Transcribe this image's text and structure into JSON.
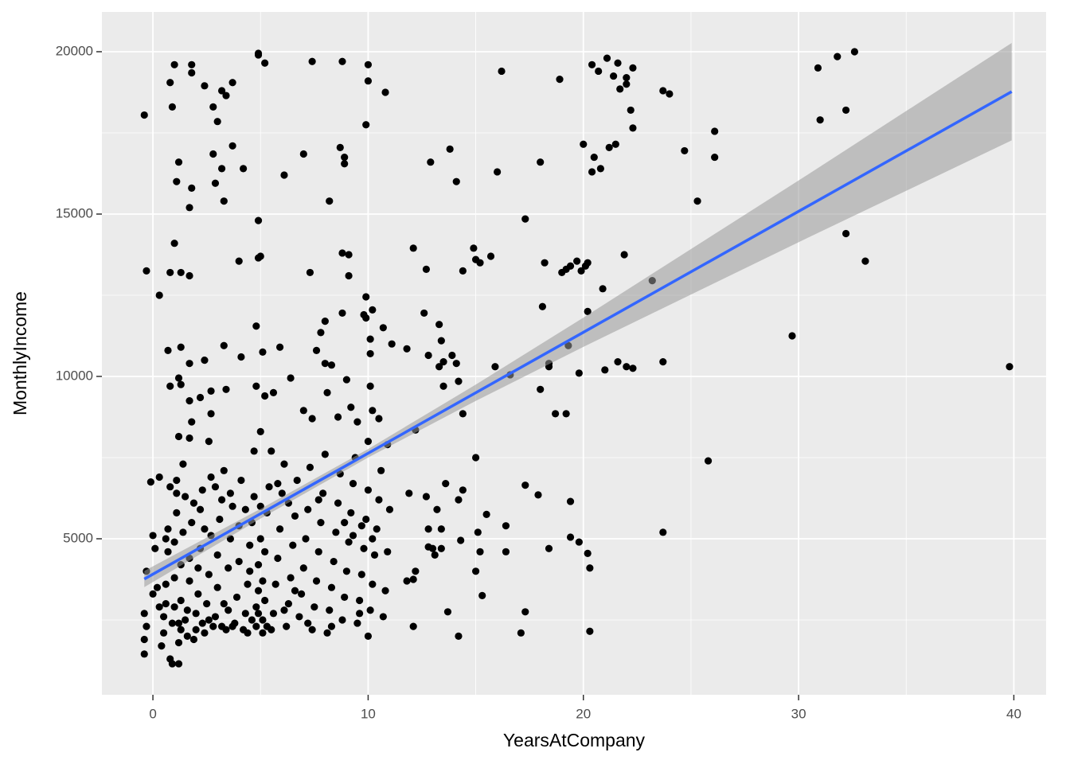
{
  "chart_data": {
    "type": "scatter",
    "x_label": "YearsAtCompany",
    "y_label": "MonthlyIncome",
    "xlim": [
      -2.37,
      41.5
    ],
    "ylim": [
      196,
      21225
    ],
    "xticks": [
      0,
      10,
      20,
      30,
      40
    ],
    "yticks": [
      5000,
      10000,
      15000,
      20000
    ],
    "grid": true,
    "color": "#000000",
    "x": [
      -0.4,
      0.8,
      1,
      0.9,
      1.8,
      1.8,
      2.4,
      2.8,
      3,
      3.2,
      3.4,
      3.7,
      4.9,
      4.9,
      5.2,
      7.4,
      8.8,
      10,
      10,
      10.8,
      9.9,
      1.2,
      1.1,
      1.8,
      1.7,
      2.8,
      2.9,
      3.2,
      3.3,
      3.7,
      4.2,
      6.1,
      7,
      8.7,
      8.9,
      8.9,
      8.2,
      4.9,
      1,
      -0.3,
      0.3,
      0.8,
      1.3,
      1.7,
      4,
      5,
      4.9,
      7.3,
      8.8,
      9.1,
      9.1,
      9.9,
      4.8,
      8.8,
      8,
      7.8,
      9.8,
      10.2,
      9.9,
      10.7,
      10.1,
      11.1,
      10.1,
      3.3,
      4.1,
      5.1,
      5.9,
      7.6,
      8,
      8.3,
      2.4,
      1.7,
      1.3,
      0.7,
      1.2,
      1.3,
      0.8,
      1.7,
      2.2,
      2.7,
      3.4,
      2.7,
      2.6,
      1.2,
      1.7,
      1.8,
      4.8,
      5.2,
      5.6,
      6.4,
      7,
      7.4,
      8.1,
      8.6,
      9,
      9.2,
      9.5,
      10.1,
      10.2,
      10.5,
      10,
      12.7,
      12.1,
      13.8,
      12.9,
      14.1,
      14.4,
      14.9,
      15,
      15.2,
      15.7,
      16.2,
      16,
      17.3,
      18,
      18.2,
      18.1,
      18.9,
      19.2,
      19,
      19.4,
      19.7,
      19.9,
      20.1,
      20.2,
      20.4,
      20.7,
      21.1,
      21.6,
      21.4,
      22,
      22,
      22.3,
      21.7,
      22.2,
      22.3,
      21.2,
      21.5,
      20.5,
      20.4,
      20.8,
      20,
      23.7,
      24,
      24.7,
      25.3,
      26.1,
      26.1,
      21.9,
      20.9,
      20.2,
      23.2,
      19.3,
      21,
      21.6,
      22,
      22.3,
      23.7,
      19.8,
      18.4,
      18.4,
      16.6,
      15.9,
      14.2,
      13.5,
      14.4,
      12.2,
      18,
      18.7,
      19.2,
      12.6,
      13.3,
      13.4,
      12.8,
      13.5,
      13.9,
      14.1,
      11.8,
      13.3,
      29.7,
      25.8,
      23.7,
      30.9,
      31,
      31.8,
      32.6,
      32.2,
      32.2,
      33.1,
      39.8,
      15,
      17.3,
      17.9,
      14.4,
      14.2,
      13.6,
      13.2,
      12.7,
      11.9,
      15.1,
      15.2,
      15,
      13.4,
      14.3,
      16.4,
      16.4,
      17.3,
      17.1,
      15.3,
      14.2,
      13.7,
      12.1,
      12.2,
      11.8,
      12.1,
      12.8,
      13.1,
      13,
      18.4,
      19.4,
      19.4,
      19.8,
      20.2,
      20.3,
      20.3,
      13.4,
      15.5,
      12.8,
      -0.4,
      -0.4,
      -0.3,
      -0.4,
      -0.3,
      0,
      0,
      0.1,
      0.2,
      0.3,
      -0.1,
      0.4,
      0.5,
      0.5,
      0.6,
      0.7,
      0.7,
      0.8,
      0.8,
      0.9,
      0.9,
      1,
      1,
      1,
      1.1,
      1.1,
      1.2,
      1.2,
      1.3,
      1.3,
      1.3,
      1.4,
      1.4,
      1.5,
      1.5,
      1.6,
      1.7,
      1.7,
      1.8,
      1.9,
      2,
      2,
      2.1,
      2.2,
      2.2,
      2.3,
      2.4,
      2.5,
      2.6,
      2.7,
      2.7,
      2.8,
      2.9,
      3,
      3,
      3.1,
      3.2,
      3.3,
      3.4,
      3.5,
      3.5,
      3.6,
      3.7,
      3.8,
      3.9,
      4,
      4,
      4.1,
      4.2,
      4.3,
      4.4,
      4.5,
      4.6,
      4.7,
      4.7,
      4.8,
      4.8,
      4.9,
      4.9,
      5,
      5,
      5,
      5.1,
      5.1,
      5.2,
      5.2,
      5.3,
      5.4,
      5.5,
      5.6,
      5.7,
      5.8,
      5.9,
      6,
      6.1,
      6.2,
      6.3,
      6.4,
      6.5,
      6.6,
      6.7,
      6.8,
      6.9,
      7,
      7.1,
      7.2,
      7.3,
      7.4,
      7.5,
      7.6,
      7.7,
      7.8,
      7.9,
      8,
      8.1,
      8.2,
      8.3,
      8.4,
      8.5,
      8.6,
      8.7,
      8.8,
      8.9,
      9,
      9.1,
      9.2,
      9.3,
      9.4,
      9.5,
      9.6,
      9.7,
      9.8,
      9.9,
      10,
      10,
      10.1,
      10.2,
      10.3,
      10.4,
      10.5,
      10.6,
      10.7,
      10.8,
      10.9,
      11,
      10.9,
      0.3,
      0.6,
      1.9,
      2.6,
      3.2,
      4.4,
      5.3,
      6.1,
      7.2,
      8.3,
      9.6,
      1.2,
      1.6,
      2.3,
      3.7,
      4.6,
      5.5,
      4.9,
      5.1,
      4.5,
      3.3,
      2.1,
      6.6,
      9.3,
      9.7,
      10.2,
      8.9,
      7.7,
      6.3,
      5.8,
      4.3,
      3.6,
      2.9,
      1.1,
      0.6,
      2.4
    ],
    "values": [
      18050,
      19050,
      19600,
      18300,
      19600,
      19350,
      18950,
      18300,
      17850,
      18800,
      18650,
      19050,
      19900,
      19950,
      19650,
      19700,
      19700,
      19600,
      19100,
      18750,
      17750,
      16600,
      16000,
      15800,
      15200,
      16850,
      15950,
      16400,
      15400,
      17100,
      16400,
      16200,
      16850,
      17050,
      16750,
      16550,
      15400,
      14800,
      14100,
      13250,
      12500,
      13200,
      13200,
      13100,
      13550,
      13700,
      13650,
      13200,
      13800,
      13750,
      13100,
      12450,
      11550,
      11950,
      11700,
      11350,
      11900,
      12050,
      11800,
      11500,
      11150,
      11000,
      10700,
      10950,
      10600,
      10750,
      10900,
      10800,
      10400,
      10350,
      10500,
      10400,
      10900,
      10800,
      9950,
      9750,
      9700,
      9250,
      9350,
      9550,
      9600,
      8850,
      8000,
      8150,
      8100,
      8600,
      9700,
      9400,
      9500,
      9950,
      8950,
      8700,
      9500,
      8750,
      9900,
      9050,
      8600,
      9700,
      8950,
      8700,
      8000,
      13300,
      13950,
      17000,
      16600,
      16000,
      13250,
      13950,
      13600,
      13500,
      13700,
      19400,
      16300,
      14850,
      16600,
      13500,
      12150,
      19150,
      13300,
      13200,
      13400,
      13550,
      13250,
      13400,
      13500,
      19600,
      19400,
      19800,
      19650,
      19250,
      19200,
      19000,
      19500,
      18850,
      18200,
      17650,
      17050,
      17150,
      16750,
      16300,
      16400,
      17150,
      18800,
      18700,
      16950,
      15400,
      17550,
      16750,
      13750,
      12700,
      12000,
      12950,
      10950,
      10200,
      10450,
      10300,
      10250,
      10450,
      10100,
      10400,
      10300,
      10050,
      10300,
      9850,
      9700,
      8850,
      8350,
      9600,
      8850,
      8850,
      11950,
      11600,
      11100,
      10650,
      10450,
      10650,
      10400,
      10850,
      10300,
      11250,
      7400,
      5200,
      19500,
      17900,
      19850,
      20000,
      18200,
      14400,
      13550,
      10300,
      7500,
      6650,
      6350,
      6500,
      6200,
      6700,
      5900,
      6300,
      6400,
      5200,
      4600,
      4000,
      4700,
      4950,
      5400,
      4600,
      2750,
      2100,
      3250,
      2000,
      2750,
      3750,
      4000,
      3700,
      2300,
      4750,
      4500,
      4700,
      4700,
      6150,
      5050,
      4900,
      4550,
      4100,
      2150,
      5300,
      5750,
      5300,
      1450,
      1900,
      2300,
      2700,
      4000,
      3300,
      5100,
      4700,
      3500,
      6900,
      6750,
      1700,
      2100,
      2600,
      3000,
      4600,
      5300,
      6600,
      1300,
      1150,
      2400,
      2900,
      3800,
      4900,
      5800,
      6800,
      1150,
      1800,
      2200,
      3100,
      4200,
      5200,
      7300,
      2500,
      6300,
      2800,
      3700,
      4400,
      5500,
      6100,
      2200,
      2700,
      3300,
      4700,
      5900,
      6500,
      2100,
      3000,
      3900,
      5100,
      6900,
      2300,
      2600,
      3500,
      4500,
      5600,
      6200,
      7100,
      2200,
      2800,
      4100,
      5000,
      6000,
      2400,
      3200,
      4300,
      5400,
      6800,
      2200,
      2700,
      3600,
      4800,
      5500,
      6300,
      7700,
      2300,
      2900,
      3400,
      4200,
      5000,
      6000,
      8300,
      2100,
      2500,
      3100,
      4600,
      5800,
      6600,
      7700,
      2700,
      3600,
      4400,
      5300,
      6400,
      7300,
      2300,
      3000,
      3800,
      4800,
      5700,
      6800,
      2600,
      3300,
      4100,
      5000,
      5900,
      7200,
      2200,
      2900,
      3700,
      4600,
      5500,
      6400,
      7600,
      2100,
      2800,
      3500,
      4300,
      5200,
      6100,
      7000,
      2500,
      3200,
      4000,
      4900,
      5800,
      6700,
      7500,
      2400,
      3100,
      3900,
      4700,
      5600,
      6500,
      2000,
      2800,
      3600,
      4500,
      5300,
      6200,
      7100,
      2600,
      3400,
      4600,
      5900,
      7900,
      2900,
      3600,
      1900,
      2500,
      2300,
      2100,
      2300,
      2800,
      2400,
      2300,
      2700,
      2400,
      2000,
      2400,
      2300,
      2500,
      2200,
      2700,
      3700,
      4000,
      3000,
      4100,
      3400,
      5100,
      5400,
      5000,
      5500,
      6200,
      6100,
      6700,
      5900,
      6400,
      6600,
      6400,
      5000,
      5300
    ],
    "fit": {
      "color": "#3366ff",
      "band_color": "#999999",
      "x": [
        -0.4,
        5,
        10,
        15,
        20,
        30,
        39.9
      ],
      "values": [
        3760,
        5771,
        7634,
        9497,
        11359,
        15084,
        18770
      ],
      "lower": [
        3510,
        5621,
        7504,
        9247,
        10909,
        14134,
        17270
      ],
      "upper": [
        4010,
        5921,
        7764,
        9747,
        11809,
        16034,
        20270
      ]
    }
  }
}
